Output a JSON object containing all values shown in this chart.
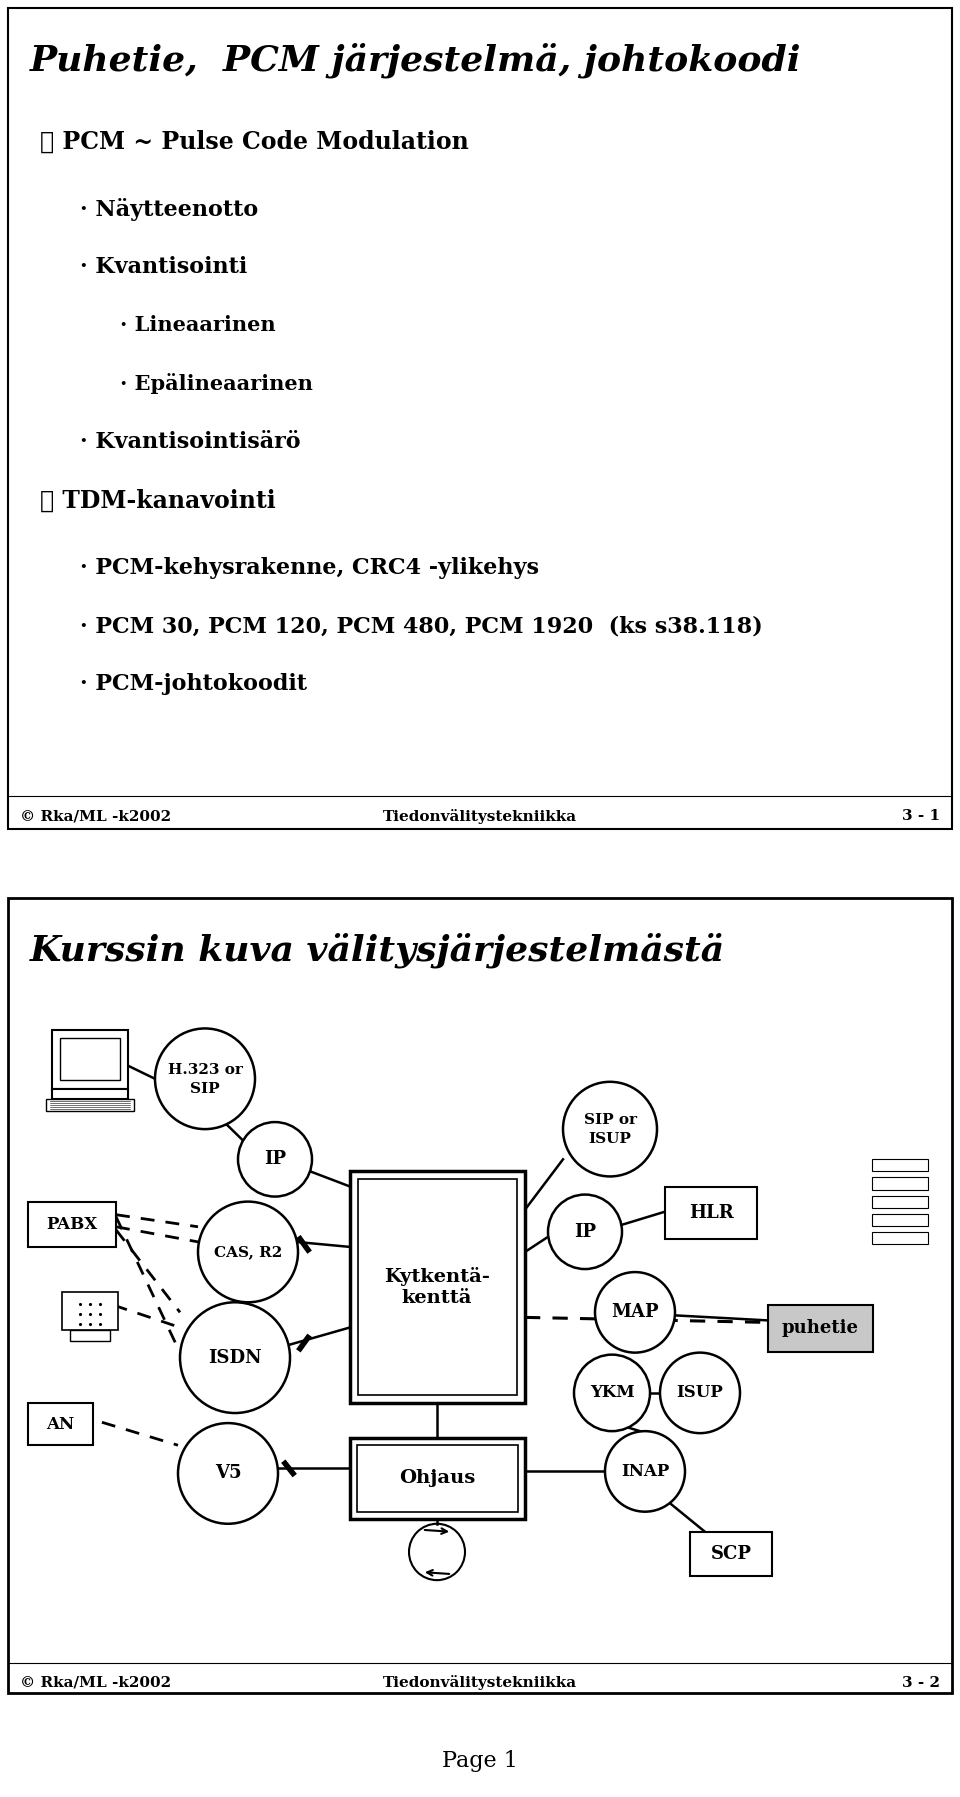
{
  "bg_color": "#ffffff",
  "slide1": {
    "title": "Puhetie,  PCM järjestelmä, johtokoodi",
    "items": [
      {
        "level": 0,
        "bullet": "✓",
        "text": "PCM ~ Pulse Code Modulation"
      },
      {
        "level": 1,
        "bullet": "·",
        "text": "Näytteenotto"
      },
      {
        "level": 1,
        "bullet": "·",
        "text": "Kvantisointi"
      },
      {
        "level": 2,
        "bullet": "·",
        "text": "Lineaarinen"
      },
      {
        "level": 2,
        "bullet": "·",
        "text": "Epälineaarinen"
      },
      {
        "level": 1,
        "bullet": "·",
        "text": "Kvantisointisärö"
      },
      {
        "level": 0,
        "bullet": "✓",
        "text": "TDM-kanavointi"
      },
      {
        "level": 1,
        "bullet": "·",
        "text": "PCM-kehysrakenne, CRC4 -ylikehys"
      },
      {
        "level": 1,
        "bullet": "·",
        "text": "PCM 30, PCM 120, PCM 480, PCM 1920  (ks s38.118)"
      },
      {
        "level": 1,
        "bullet": "·",
        "text": "PCM-johtokoodit"
      }
    ],
    "footer_left": "© Rka/ML -k2002",
    "footer_center": "Tiedonvälitystekniikka",
    "footer_right": "3 - 1"
  },
  "slide2": {
    "title": "Kurssin kuva välitysjärjestelmästä",
    "footer_left": "© Rka/ML -k2002",
    "footer_center": "Tiedonvälitystekniikka",
    "footer_right": "3 - 2"
  },
  "page_label": "Page 1"
}
